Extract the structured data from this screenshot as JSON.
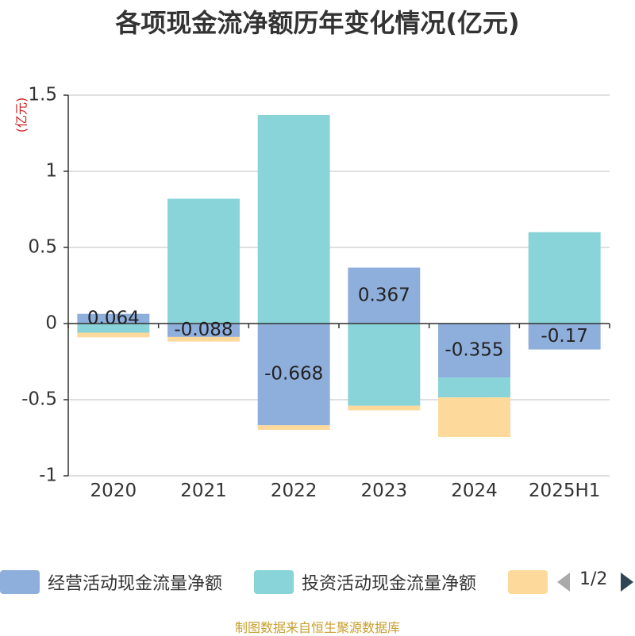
{
  "chart_data": {
    "type": "bar",
    "stacked": true,
    "title": "各项现金流净额历年变化情况(亿元)",
    "unit": "(亿元)",
    "categories": [
      "2020",
      "2021",
      "2022",
      "2023",
      "2024",
      "2025H1"
    ],
    "ylim": [
      -1,
      1.5
    ],
    "yticks": [
      -1,
      -0.5,
      0,
      0.5,
      1,
      1.5
    ],
    "ytick_labels": [
      "-1",
      "-0.5",
      "0",
      "0.5",
      "1",
      "1.5"
    ],
    "grid": true,
    "series": [
      {
        "name": "经营活动现金流量净额",
        "color": "#8eaedb",
        "values": [
          0.064,
          -0.088,
          -0.668,
          0.367,
          -0.355,
          -0.17
        ],
        "labels": [
          "0.064",
          "-0.088",
          "-0.668",
          "0.367",
          "-0.355",
          "-0.17"
        ]
      },
      {
        "name": "投资活动现金流量净额",
        "color": "#88d4d8",
        "values": [
          -0.06,
          0.82,
          1.37,
          -0.54,
          -0.13,
          0.6
        ]
      },
      {
        "name": "",
        "color": "#fdd99b",
        "values": [
          -0.03,
          -0.03,
          -0.03,
          -0.03,
          -0.26,
          0.0
        ]
      }
    ],
    "legend_position": "bottom"
  },
  "pager": {
    "text": "1/2"
  },
  "source": "制图数据来自恒生聚源数据库"
}
